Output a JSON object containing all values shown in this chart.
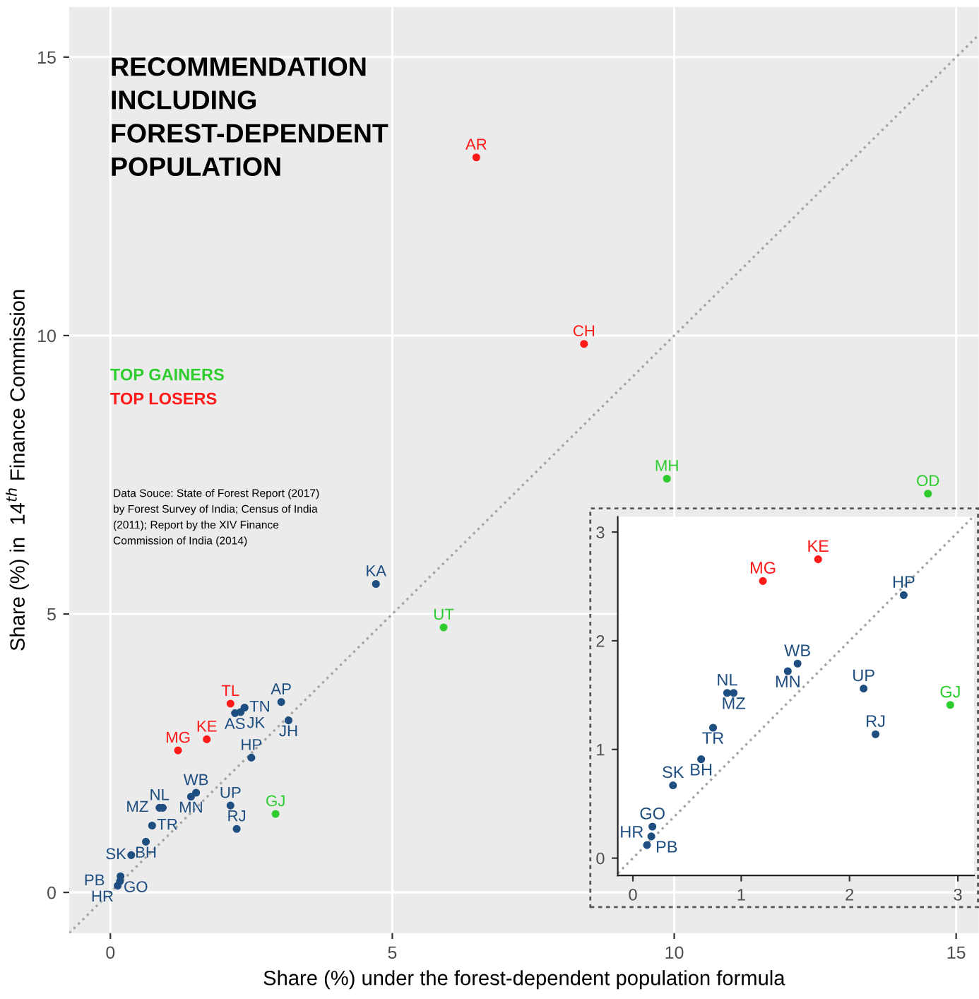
{
  "chart_data": [
    {
      "type": "scatter",
      "title": "RECOMMENDATION INCLUDING FOREST-DEPENDENT POPULATION",
      "xlabel": "Share (%) under the forest-dependent population formula",
      "ylabel": "Share (%) in  14$^{th}$ Finance Commission",
      "annotations": [
        "Data Souce: State of Forest Report (2017) by Forest Survey of India; Census of India (2011); Report by the XIV Finance Commission of India (2014)"
      ],
      "xlim": [
        -0.73,
        15.4
      ],
      "ylim": [
        -0.73,
        15.9
      ],
      "xticks": [
        0,
        5,
        10,
        15
      ],
      "yticks": [
        0,
        5,
        10,
        15
      ],
      "grid": true,
      "series": [
        {
          "name": "TOP GAINERS",
          "color": "#2ecc2e",
          "marker": "circle",
          "x": [
            9.87,
            14.5,
            5.91,
            2.93
          ],
          "values": [
            7.43,
            7.16,
            4.76,
            1.41
          ],
          "value_labels": [
            "MH",
            "OD",
            "UT",
            "GJ"
          ]
        },
        {
          "name": "TOP LOSERS",
          "color": "#ff1a1a",
          "marker": "circle",
          "x": [
            6.49,
            8.4,
            2.13,
            1.71,
            1.2
          ],
          "values": [
            13.2,
            9.85,
            3.39,
            2.75,
            2.55
          ],
          "value_labels": [
            "AR",
            "CH",
            "TL",
            "KE",
            "MG"
          ]
        },
        {
          "color": "#1f4e80",
          "marker": "circle",
          "x": [
            4.71,
            2.21,
            2.31,
            2.38,
            3.03,
            3.16,
            2.5,
            1.52,
            1.43,
            2.13,
            2.24,
            0.87,
            0.93,
            0.74,
            0.63,
            0.37,
            0.18,
            0.17,
            0.13
          ],
          "values": [
            5.54,
            3.22,
            3.24,
            3.32,
            3.42,
            3.09,
            2.42,
            1.79,
            1.72,
            1.56,
            1.14,
            1.52,
            1.52,
            1.2,
            0.91,
            0.67,
            0.29,
            0.2,
            0.12
          ],
          "value_labels": [
            "KA",
            "AS",
            "JK",
            "TN",
            "AP",
            "JH",
            "HP",
            "WB",
            "MN",
            "UP",
            "RJ",
            "NL",
            "MZ",
            "TR",
            "BH",
            "SK",
            "GO",
            "PB",
            "HR"
          ]
        },
        {
          "type": "line",
          "color": "#a6a6a6",
          "line_style": "dotted",
          "x": [
            -0.73,
            15.4
          ],
          "values": [
            -0.73,
            15.4
          ]
        }
      ]
    },
    {
      "type": "scatter",
      "xlim": [
        -0.14,
        3.15
      ],
      "ylim": [
        -0.16,
        3.14
      ],
      "xticks": [
        0,
        1,
        2,
        3
      ],
      "yticks": [
        0,
        1,
        2,
        3
      ],
      "series": [
        {
          "color": "#2ecc2e",
          "marker": "circle",
          "x": [
            2.93
          ],
          "values": [
            1.41
          ],
          "value_labels": [
            "GJ"
          ]
        },
        {
          "color": "#ff1a1a",
          "marker": "circle",
          "x": [
            1.71,
            1.2
          ],
          "values": [
            2.75,
            2.55
          ],
          "value_labels": [
            "KE",
            "MG"
          ]
        },
        {
          "color": "#1f4e80",
          "marker": "circle",
          "x": [
            2.5,
            1.52,
            1.43,
            2.13,
            2.24,
            0.87,
            0.93,
            0.74,
            0.63,
            0.37,
            0.18,
            0.17,
            0.13
          ],
          "values": [
            2.42,
            1.79,
            1.72,
            1.56,
            1.14,
            1.52,
            1.52,
            1.2,
            0.91,
            0.67,
            0.29,
            0.2,
            0.12
          ],
          "value_labels": [
            "HP",
            "WB",
            "MN",
            "UP",
            "RJ",
            "NL",
            "MZ",
            "TR",
            "BH",
            "SK",
            "GO",
            "PB",
            "HR"
          ]
        },
        {
          "type": "line",
          "color": "#a6a6a6",
          "line_style": "dotted",
          "x": [
            -0.14,
            3.14
          ],
          "values": [
            -0.14,
            3.14
          ]
        }
      ]
    }
  ]
}
